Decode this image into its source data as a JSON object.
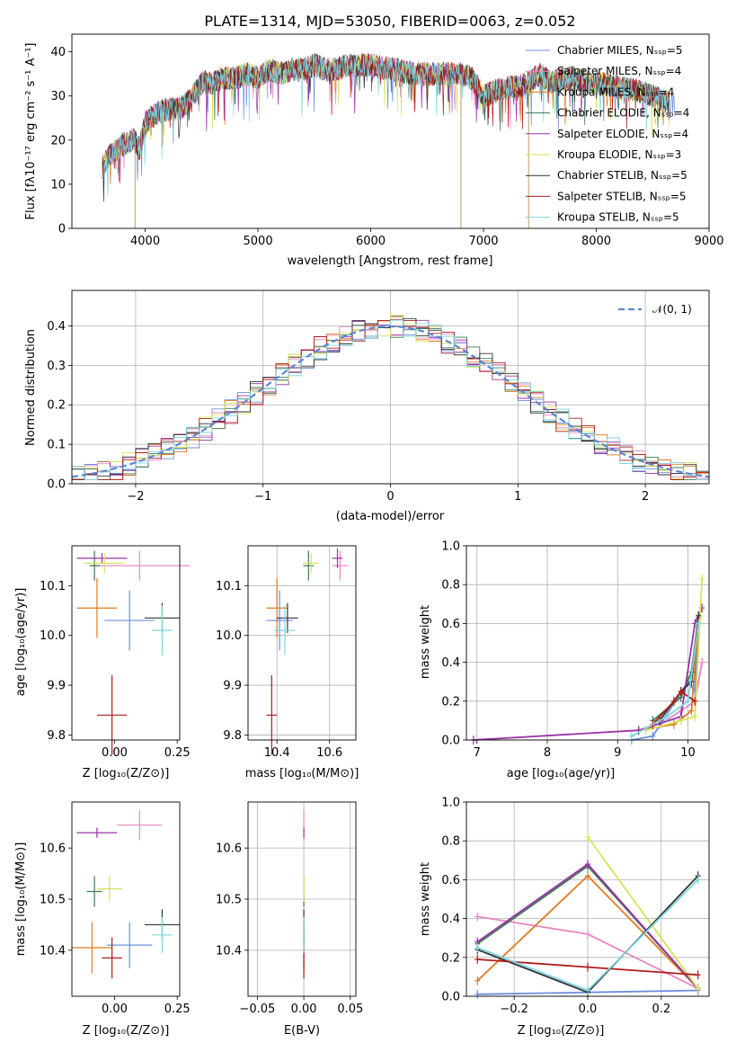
{
  "colors": [
    "#6a8fdc",
    "#6a8fdc",
    "#e07b22",
    "#4a4a4a",
    "#9932a8",
    "#d8e25a",
    "#333333",
    "#b01c1c",
    "#7ed6e0"
  ],
  "chart_data": [
    {
      "id": "spectrum",
      "type": "line",
      "title": "PLATE=1314, MJD=53050, FIBERID=0063, z=0.052",
      "xlabel": "wavelength [Angstrom, rest frame]",
      "ylabel": "Flux [fλ10⁻¹⁷ erg cm⁻² s⁻¹ A⁻¹]",
      "xlim": [
        3350,
        9000
      ],
      "ylim": [
        0,
        44
      ],
      "xticks": [
        "4000",
        "5000",
        "6000",
        "7000",
        "8000",
        "9000"
      ],
      "yticks": [
        "0",
        "10",
        "20",
        "30",
        "40"
      ],
      "legend_position": "top-right",
      "series": [
        {
          "name": "Chabrier MILES, Nₛₛₚ=5",
          "color": "#6a8fdc"
        },
        {
          "name": "Salpeter MILES, Nₛₛₚ=4",
          "color": "#e888c4"
        },
        {
          "name": "Kroupa MILES, Nₛₛₚ=4",
          "color": "#e07b22"
        },
        {
          "name": "Chabrier ELODIE, Nₛₛₚ=4",
          "color": "#3a7a50"
        },
        {
          "name": "Salpeter ELODIE, Nₛₛₚ=4",
          "color": "#9932a8"
        },
        {
          "name": "Kroupa ELODIE, Nₛₛₚ=3",
          "color": "#d8e25a"
        },
        {
          "name": "Chabrier STELIB, Nₛₛₚ=5",
          "color": "#333333"
        },
        {
          "name": "Salpeter STELIB, Nₛₛₚ=5",
          "color": "#b01c1c"
        },
        {
          "name": "Kroupa STELIB, Nₛₛₚ=5",
          "color": "#7ed6e0"
        }
      ],
      "continuum": {
        "x": [
          3620,
          3700,
          3800,
          3900,
          3950,
          4000,
          4100,
          4200,
          4300,
          4400,
          4500,
          4600,
          4700,
          4800,
          4900,
          5000,
          5100,
          5200,
          5300,
          5400,
          5500,
          5600,
          5700,
          5800,
          5900,
          6000,
          6200,
          6400,
          6600,
          6800,
          6900,
          7000,
          7100,
          7200,
          7300,
          7400,
          7500,
          7600,
          7700,
          7800,
          8000,
          8200,
          8400,
          8600,
          8700
        ],
        "y": [
          14,
          17,
          19,
          20,
          18,
          24,
          26,
          27,
          27,
          29,
          33,
          33,
          34,
          34,
          35,
          34,
          36,
          35,
          36,
          36,
          37,
          36,
          36,
          37,
          37,
          37,
          36,
          35,
          35,
          35,
          34,
          30,
          31,
          32,
          32,
          33,
          35,
          33,
          34,
          34,
          33,
          32,
          31,
          29,
          28
        ]
      },
      "spikes_down": [
        3910,
        6800,
        7400
      ]
    },
    {
      "id": "residuals",
      "type": "line",
      "xlabel": "(data-model)/error",
      "ylabel": "Normed distribution",
      "xlim": [
        -2.5,
        2.5
      ],
      "ylim": [
        0,
        0.49
      ],
      "xticks": [
        "−2",
        "−1",
        "0",
        "1",
        "2"
      ],
      "yticks": [
        "0.0",
        "0.1",
        "0.2",
        "0.3",
        "0.4"
      ],
      "grid": true,
      "legend_position": "top-right",
      "legend_label": "𝒩(0, 1)",
      "gaussian": {
        "mean": 0,
        "sigma": 1
      }
    },
    {
      "id": "age-vs-z",
      "type": "scatter",
      "xlabel": "Z [log₁₀(Z/Z⊙)]",
      "ylabel": "age  [log₁₀(age/yr)]",
      "xlim": [
        -0.17,
        0.26
      ],
      "ylim": [
        9.79,
        10.18
      ],
      "xticks": [
        "0.00",
        "0.25"
      ],
      "yticks": [
        "9.8",
        "9.9",
        "10.0",
        "10.1"
      ],
      "points": [
        {
          "x": 0.06,
          "y": 10.03,
          "xe": 0.1,
          "ye": 0.06,
          "c": "#6a8fdc"
        },
        {
          "x": 0.1,
          "y": 10.14,
          "xe": 0.2,
          "ye": 0.03,
          "c": "#e888c4"
        },
        {
          "x": -0.07,
          "y": 10.055,
          "xe": 0.08,
          "ye": 0.06,
          "c": "#e07b22"
        },
        {
          "x": -0.08,
          "y": 10.14,
          "xe": 0.02,
          "ye": 0.03,
          "c": "#3a7a50"
        },
        {
          "x": -0.05,
          "y": 10.155,
          "xe": 0.1,
          "ye": 0.01,
          "c": "#9932a8"
        },
        {
          "x": -0.04,
          "y": 10.145,
          "xe": 0.08,
          "ye": 0.02,
          "c": "#d8e25a"
        },
        {
          "x": 0.19,
          "y": 10.035,
          "xe": 0.07,
          "ye": 0.03,
          "c": "#333333"
        },
        {
          "x": -0.01,
          "y": 9.84,
          "xe": 0.06,
          "ye": 0.08,
          "c": "#b01c1c"
        },
        {
          "x": 0.19,
          "y": 10.01,
          "xe": 0.04,
          "ye": 0.05,
          "c": "#7ed6e0"
        }
      ]
    },
    {
      "id": "age-vs-mass",
      "type": "scatter",
      "xlabel": "mass [log₁₀(M/M⊙)]",
      "ylabel": "",
      "xlim": [
        10.29,
        10.7
      ],
      "ylim": [
        9.79,
        10.18
      ],
      "xticks": [
        "10.4",
        "10.6"
      ],
      "yticks": [
        "9.8",
        "9.9",
        "10.0",
        "10.1"
      ],
      "points": [
        {
          "x": 10.41,
          "y": 10.03,
          "xe": 0.05,
          "ye": 0.06,
          "c": "#6a8fdc"
        },
        {
          "x": 10.64,
          "y": 10.14,
          "xe": 0.03,
          "ye": 0.03,
          "c": "#e888c4"
        },
        {
          "x": 10.4,
          "y": 10.055,
          "xe": 0.04,
          "ye": 0.06,
          "c": "#e07b22"
        },
        {
          "x": 10.52,
          "y": 10.14,
          "xe": 0.02,
          "ye": 0.03,
          "c": "#3a7a50"
        },
        {
          "x": 10.63,
          "y": 10.155,
          "xe": 0.02,
          "ye": 0.02,
          "c": "#9932a8"
        },
        {
          "x": 10.53,
          "y": 10.145,
          "xe": 0.03,
          "ye": 0.02,
          "c": "#d8e25a"
        },
        {
          "x": 10.44,
          "y": 10.035,
          "xe": 0.04,
          "ye": 0.03,
          "c": "#333333"
        },
        {
          "x": 10.38,
          "y": 9.84,
          "xe": 0.02,
          "ye": 0.08,
          "c": "#b01c1c"
        },
        {
          "x": 10.43,
          "y": 10.01,
          "xe": 0.04,
          "ye": 0.05,
          "c": "#7ed6e0"
        }
      ]
    },
    {
      "id": "mass-weight-vs-age",
      "type": "line",
      "xlabel": "age  [log₁₀(age/yr)]",
      "ylabel": "mass weight",
      "xlim": [
        6.85,
        10.3
      ],
      "ylim": [
        0,
        1.0
      ],
      "xticks": [
        "7",
        "8",
        "9",
        "10"
      ],
      "yticks": [
        "0.0",
        "0.2",
        "0.4",
        "0.6",
        "0.8",
        "1.0"
      ],
      "grid": true,
      "series": [
        {
          "c": "#6a8fdc",
          "x": [
            9.2,
            9.5,
            10.0,
            10.1,
            10.15
          ],
          "y": [
            0.0,
            0.02,
            0.3,
            0.25,
            0.6
          ]
        },
        {
          "c": "#e888c4",
          "x": [
            9.6,
            9.9,
            10.1,
            10.2
          ],
          "y": [
            0.08,
            0.15,
            0.2,
            0.4
          ]
        },
        {
          "c": "#e07b22",
          "x": [
            9.3,
            9.8,
            10.05,
            10.15
          ],
          "y": [
            0.05,
            0.08,
            0.15,
            0.62
          ]
        },
        {
          "c": "#3a7a50",
          "x": [
            9.5,
            9.9,
            10.05,
            10.15
          ],
          "y": [
            0.1,
            0.22,
            0.35,
            0.63
          ]
        },
        {
          "c": "#9932a8",
          "x": [
            6.95,
            9.3,
            9.9,
            10.1,
            10.2
          ],
          "y": [
            0.0,
            0.05,
            0.12,
            0.6,
            0.68
          ]
        },
        {
          "c": "#d8e25a",
          "x": [
            9.4,
            9.9,
            10.1,
            10.2
          ],
          "y": [
            0.05,
            0.1,
            0.12,
            0.83
          ]
        },
        {
          "c": "#333333",
          "x": [
            9.6,
            9.9,
            10.05,
            10.15
          ],
          "y": [
            0.1,
            0.25,
            0.3,
            0.64
          ]
        },
        {
          "c": "#b01c1c",
          "x": [
            9.5,
            9.8,
            9.9,
            10.1
          ],
          "y": [
            0.08,
            0.2,
            0.25,
            0.2
          ]
        },
        {
          "c": "#7ed6e0",
          "x": [
            9.2,
            9.7,
            10.0,
            10.15
          ],
          "y": [
            0.02,
            0.12,
            0.2,
            0.6
          ]
        }
      ]
    },
    {
      "id": "mass-vs-z",
      "type": "scatter",
      "xlabel": "Z [log₁₀(Z/Z⊙)]",
      "ylabel": "mass [log₁₀(M/M⊙)]",
      "xlim": [
        -0.17,
        0.26
      ],
      "ylim": [
        10.31,
        10.69
      ],
      "xticks": [
        "0.00",
        "0.25"
      ],
      "yticks": [
        "10.4",
        "10.5",
        "10.6"
      ],
      "points": [
        {
          "x": 0.06,
          "y": 10.41,
          "xe": 0.09,
          "ye": 0.045,
          "c": "#6a8fdc"
        },
        {
          "x": 0.1,
          "y": 10.645,
          "xe": 0.09,
          "ye": 0.03,
          "c": "#e888c4"
        },
        {
          "x": -0.09,
          "y": 10.405,
          "xe": 0.08,
          "ye": 0.05,
          "c": "#e07b22"
        },
        {
          "x": -0.08,
          "y": 10.515,
          "xe": 0.03,
          "ye": 0.03,
          "c": "#3a7a50"
        },
        {
          "x": -0.07,
          "y": 10.63,
          "xe": 0.08,
          "ye": 0.01,
          "c": "#9932a8"
        },
        {
          "x": -0.02,
          "y": 10.52,
          "xe": 0.05,
          "ye": 0.025,
          "c": "#d8e25a"
        },
        {
          "x": 0.19,
          "y": 10.45,
          "xe": 0.07,
          "ye": 0.03,
          "c": "#333333"
        },
        {
          "x": -0.01,
          "y": 10.385,
          "xe": 0.04,
          "ye": 0.04,
          "c": "#b01c1c"
        },
        {
          "x": 0.19,
          "y": 10.43,
          "xe": 0.04,
          "ye": 0.035,
          "c": "#7ed6e0"
        }
      ]
    },
    {
      "id": "mass-vs-ebv",
      "type": "scatter",
      "xlabel": "E(B-V)",
      "ylabel": "",
      "xlim": [
        -0.06,
        0.056
      ],
      "ylim": [
        10.31,
        10.69
      ],
      "xticks": [
        "−0.05",
        "0.00",
        "0.05"
      ],
      "yticks": [
        "10.4",
        "10.5",
        "10.6"
      ],
      "points": [
        {
          "x": 0,
          "y": 10.41,
          "xe": 0,
          "ye": 0.045,
          "c": "#6a8fdc"
        },
        {
          "x": 0,
          "y": 10.645,
          "xe": 0,
          "ye": 0.03,
          "c": "#e888c4"
        },
        {
          "x": 0,
          "y": 10.405,
          "xe": 0,
          "ye": 0.05,
          "c": "#e07b22"
        },
        {
          "x": 0,
          "y": 10.515,
          "xe": 0,
          "ye": 0.03,
          "c": "#3a7a50"
        },
        {
          "x": 0,
          "y": 10.63,
          "xe": 0,
          "ye": 0.01,
          "c": "#9932a8"
        },
        {
          "x": 0,
          "y": 10.52,
          "xe": 0,
          "ye": 0.025,
          "c": "#d8e25a"
        },
        {
          "x": 0,
          "y": 10.45,
          "xe": 0,
          "ye": 0.03,
          "c": "#333333"
        },
        {
          "x": 0,
          "y": 10.385,
          "xe": 0,
          "ye": 0.04,
          "c": "#b01c1c"
        },
        {
          "x": 0,
          "y": 10.43,
          "xe": 0,
          "ye": 0.035,
          "c": "#7ed6e0"
        }
      ]
    },
    {
      "id": "mass-weight-vs-z",
      "type": "line",
      "xlabel": "Z [log₁₀(Z/Z⊙)]",
      "ylabel": "mass weight",
      "xlim": [
        -0.33,
        0.33
      ],
      "ylim": [
        0,
        1.0
      ],
      "xticks": [
        "−0.2",
        "0.0",
        "0.2"
      ],
      "yticks": [
        "0.0",
        "0.2",
        "0.4",
        "0.6",
        "0.8",
        "1.0"
      ],
      "grid": true,
      "series": [
        {
          "c": "#6a8fdc",
          "x": [
            -0.3,
            0.0,
            0.3
          ],
          "y": [
            0.01,
            0.02,
            0.03
          ]
        },
        {
          "c": "#e888c4",
          "x": [
            -0.3,
            0.0,
            0.3
          ],
          "y": [
            0.41,
            0.32,
            0.04
          ]
        },
        {
          "c": "#e07b22",
          "x": [
            -0.3,
            0.0,
            0.3
          ],
          "y": [
            0.08,
            0.62,
            0.04
          ]
        },
        {
          "c": "#3a7a50",
          "x": [
            -0.3,
            0.0,
            0.3
          ],
          "y": [
            0.27,
            0.67,
            0.04
          ]
        },
        {
          "c": "#9932a8",
          "x": [
            -0.3,
            0.0,
            0.3
          ],
          "y": [
            0.28,
            0.68,
            0.04
          ]
        },
        {
          "c": "#d8e25a",
          "x": [
            0.0,
            0.3
          ],
          "y": [
            0.82,
            0.04
          ]
        },
        {
          "c": "#333333",
          "x": [
            -0.3,
            0.0,
            0.3
          ],
          "y": [
            0.24,
            0.02,
            0.62
          ]
        },
        {
          "c": "#b01c1c",
          "x": [
            -0.3,
            0.0,
            0.3
          ],
          "y": [
            0.19,
            0.15,
            0.11
          ]
        },
        {
          "c": "#7ed6e0",
          "x": [
            -0.3,
            0.0,
            0.3
          ],
          "y": [
            0.25,
            0.03,
            0.6
          ]
        }
      ]
    }
  ]
}
